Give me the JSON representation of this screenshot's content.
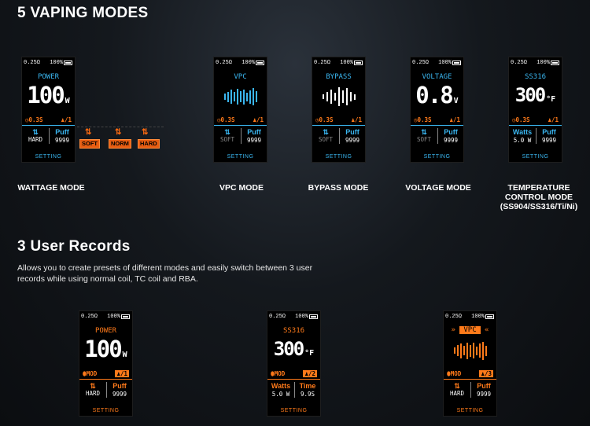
{
  "headings": {
    "modes": "5 VAPING MODES",
    "records": "3 User Records"
  },
  "description": "Allows you to create presets of different modes and easily switch between 3 user records while using normal coil, TC coil and RBA.",
  "status": {
    "resistance": "0.25Ω",
    "battery": "100%"
  },
  "setting_label": "SETTING",
  "modes": [
    {
      "name": "POWER",
      "value": "100",
      "unit": "W",
      "time": "0.3S",
      "profile": "1",
      "left_top": "HARD",
      "right_top": "Puff",
      "right_bottom": "9999",
      "caption": "WATTAGE MODE"
    },
    {
      "name": "VPC",
      "time": "0.3S",
      "profile": "1",
      "left_top": "SOFT",
      "right_top": "Puff",
      "right_bottom": "9999",
      "caption": "VPC MODE"
    },
    {
      "name": "BYPASS",
      "time": "0.3S",
      "profile": "1",
      "left_top": "SOFT",
      "right_top": "Puff",
      "right_bottom": "9999",
      "caption": "BYPASS MODE"
    },
    {
      "name": "VOLTAGE",
      "value": "0.8",
      "unit": "V",
      "time": "0.3S",
      "profile": "1",
      "left_top": "SOFT",
      "right_top": "Puff",
      "right_bottom": "9999",
      "caption": "VOLTAGE MODE"
    },
    {
      "name": "SS316",
      "value": "300",
      "unit": "°F",
      "time": "0.3S",
      "profile": "1",
      "left_top": "Watts",
      "left_bottom": "5.0 W",
      "right_top": "Puff",
      "right_bottom": "9999",
      "caption": "TEMPERATURE CONTROL MODE (SS904/SS316/Ti/Ni)"
    }
  ],
  "wattage_options": [
    "SOFT",
    "NORM",
    "HARD"
  ],
  "records": [
    {
      "name": "POWER",
      "value": "100",
      "unit": "W",
      "mod": "MOD",
      "profile": "1",
      "left_top": "HARD",
      "right_top": "Puff",
      "right_bottom": "9999"
    },
    {
      "name": "SS316",
      "value": "300",
      "unit": "°F",
      "mod": "MOD",
      "profile": "2",
      "left_top": "Watts",
      "left_bottom": "5.0 W",
      "right_top": "Time",
      "right_bottom": "9.9S"
    },
    {
      "name": "VPC",
      "mod": "MOD",
      "profile": "3",
      "left_top": "HARD",
      "right_top": "Puff",
      "right_bottom": "9999"
    }
  ],
  "colors": {
    "blue": "#3ab6f0",
    "orange": "#ff7a1a",
    "white": "#ffffff"
  }
}
